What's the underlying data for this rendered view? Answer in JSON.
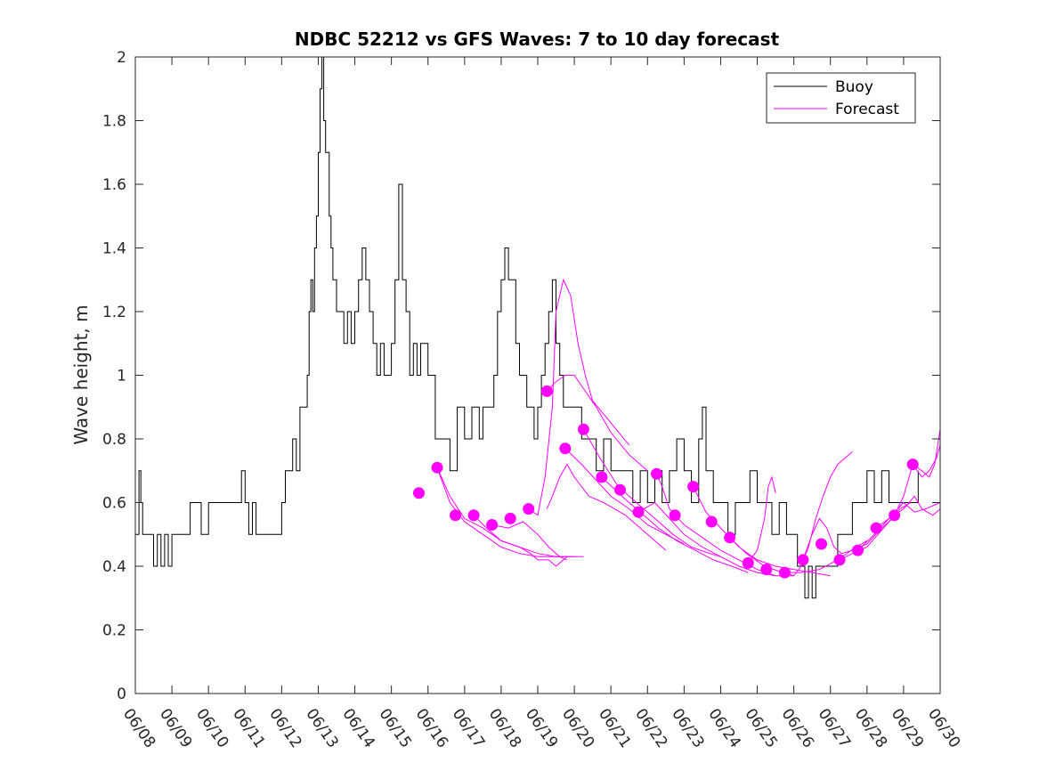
{
  "chart_data": {
    "type": "line",
    "title": "NDBC 52212 vs GFS Waves: 7 to 10 day forecast",
    "ylabel": "Wave height, m",
    "xlabel": "",
    "xlim": [
      0,
      22
    ],
    "ylim": [
      0,
      2
    ],
    "x_ticks": [
      {
        "x": 0,
        "label": "06/08"
      },
      {
        "x": 1,
        "label": "06/09"
      },
      {
        "x": 2,
        "label": "06/10"
      },
      {
        "x": 3,
        "label": "06/11"
      },
      {
        "x": 4,
        "label": "06/12"
      },
      {
        "x": 5,
        "label": "06/13"
      },
      {
        "x": 6,
        "label": "06/14"
      },
      {
        "x": 7,
        "label": "06/15"
      },
      {
        "x": 8,
        "label": "06/16"
      },
      {
        "x": 9,
        "label": "06/17"
      },
      {
        "x": 10,
        "label": "06/18"
      },
      {
        "x": 11,
        "label": "06/19"
      },
      {
        "x": 12,
        "label": "06/20"
      },
      {
        "x": 13,
        "label": "06/21"
      },
      {
        "x": 14,
        "label": "06/22"
      },
      {
        "x": 15,
        "label": "06/23"
      },
      {
        "x": 16,
        "label": "06/24"
      },
      {
        "x": 17,
        "label": "06/25"
      },
      {
        "x": 18,
        "label": "06/26"
      },
      {
        "x": 19,
        "label": "06/27"
      },
      {
        "x": 20,
        "label": "06/28"
      },
      {
        "x": 21,
        "label": "06/29"
      },
      {
        "x": 22,
        "label": "06/30"
      }
    ],
    "y_ticks": [
      {
        "y": 0,
        "label": "0"
      },
      {
        "y": 0.2,
        "label": "0.2"
      },
      {
        "y": 0.4,
        "label": "0.4"
      },
      {
        "y": 0.6,
        "label": "0.6"
      },
      {
        "y": 0.8,
        "label": "0.8"
      },
      {
        "y": 1,
        "label": "1"
      },
      {
        "y": 1.2,
        "label": "1.2"
      },
      {
        "y": 1.4,
        "label": "1.4"
      },
      {
        "y": 1.6,
        "label": "1.6"
      },
      {
        "y": 1.8,
        "label": "1.8"
      },
      {
        "y": 2,
        "label": "2"
      }
    ],
    "legend": {
      "position": "top-right",
      "entries": [
        {
          "label": "Buoy",
          "color": "#000000"
        },
        {
          "label": "Forecast",
          "color": "#ff00ff"
        }
      ]
    },
    "colors": {
      "buoy": "#000000",
      "forecast": "#ff00ff"
    },
    "buoy": {
      "name": "Buoy",
      "x": [
        0,
        0.1,
        0.15,
        0.2,
        0.3,
        0.5,
        0.6,
        0.7,
        0.8,
        0.9,
        1.0,
        1.2,
        1.5,
        1.8,
        2.0,
        2.3,
        2.6,
        2.9,
        3.0,
        3.1,
        3.2,
        3.3,
        3.5,
        3.8,
        4.0,
        4.1,
        4.2,
        4.3,
        4.4,
        4.5,
        4.6,
        4.7,
        4.75,
        4.8,
        4.85,
        4.9,
        4.95,
        5.0,
        5.05,
        5.1,
        5.15,
        5.2,
        5.3,
        5.35,
        5.4,
        5.5,
        5.6,
        5.7,
        5.8,
        5.9,
        6.0,
        6.1,
        6.2,
        6.3,
        6.4,
        6.5,
        6.6,
        6.7,
        6.8,
        6.9,
        7.0,
        7.1,
        7.2,
        7.3,
        7.4,
        7.5,
        7.6,
        7.7,
        7.8,
        8.0,
        8.2,
        8.3,
        8.4,
        8.6,
        8.8,
        9.0,
        9.1,
        9.2,
        9.3,
        9.4,
        9.5,
        9.6,
        9.7,
        9.8,
        9.9,
        10.0,
        10.1,
        10.2,
        10.3,
        10.4,
        10.5,
        10.6,
        10.7,
        10.8,
        10.9,
        11.0,
        11.1,
        11.2,
        11.3,
        11.4,
        11.5,
        11.6,
        11.7,
        11.8,
        12.0,
        12.2,
        12.4,
        12.6,
        12.8,
        13.0,
        13.2,
        13.4,
        13.6,
        13.8,
        14.0,
        14.2,
        14.4,
        14.6,
        14.8,
        15.0,
        15.2,
        15.4,
        15.5,
        15.6,
        15.8,
        16.0,
        16.2,
        16.4,
        16.6,
        16.8,
        17.0,
        17.2,
        17.4,
        17.6,
        17.8,
        18.0,
        18.1,
        18.2,
        18.3,
        18.4,
        18.5,
        18.6,
        18.8,
        19.0,
        19.2,
        19.4,
        19.6,
        19.8,
        20.0,
        20.2,
        20.4,
        20.6,
        20.8,
        21.0,
        21.2,
        21.4
      ],
      "y": [
        0.5,
        0.7,
        0.6,
        0.5,
        0.5,
        0.4,
        0.5,
        0.4,
        0.5,
        0.4,
        0.5,
        0.5,
        0.6,
        0.5,
        0.6,
        0.6,
        0.6,
        0.7,
        0.6,
        0.5,
        0.6,
        0.5,
        0.5,
        0.5,
        0.6,
        0.7,
        0.7,
        0.8,
        0.7,
        0.9,
        0.9,
        1.0,
        1.2,
        1.3,
        1.2,
        1.4,
        1.5,
        1.7,
        1.9,
        2.0,
        1.8,
        1.7,
        1.5,
        1.4,
        1.3,
        1.2,
        1.2,
        1.1,
        1.2,
        1.1,
        1.2,
        1.3,
        1.4,
        1.3,
        1.2,
        1.1,
        1.0,
        1.1,
        1.0,
        1.0,
        1.1,
        1.3,
        1.6,
        1.3,
        1.2,
        1.0,
        1.1,
        1.0,
        1.1,
        1.0,
        0.8,
        0.8,
        0.8,
        0.7,
        0.9,
        0.8,
        0.8,
        0.9,
        0.9,
        0.8,
        0.9,
        0.9,
        0.9,
        1.0,
        1.2,
        1.3,
        1.4,
        1.3,
        1.3,
        1.1,
        1.0,
        1.0,
        0.9,
        0.9,
        0.8,
        0.9,
        1.0,
        1.1,
        1.2,
        1.3,
        1.1,
        1.0,
        0.9,
        0.9,
        0.9,
        0.8,
        0.8,
        0.7,
        0.8,
        0.7,
        0.7,
        0.7,
        0.6,
        0.7,
        0.6,
        0.7,
        0.6,
        0.7,
        0.8,
        0.7,
        0.6,
        0.8,
        0.9,
        0.7,
        0.6,
        0.6,
        0.5,
        0.6,
        0.6,
        0.7,
        0.6,
        0.6,
        0.5,
        0.6,
        0.5,
        0.5,
        0.4,
        0.4,
        0.3,
        0.4,
        0.3,
        0.4,
        0.4,
        0.4,
        0.5,
        0.5,
        0.6,
        0.6,
        0.7,
        0.6,
        0.7,
        0.6,
        0.6,
        0.6,
        0.6,
        0.7
      ]
    },
    "forecast_points": {
      "name": "Forecast",
      "x": [
        7.75,
        8.25,
        8.75,
        9.25,
        9.75,
        10.25,
        10.75,
        11.25,
        11.75,
        12.25,
        12.75,
        13.25,
        13.75,
        14.25,
        14.75,
        15.25,
        15.75,
        16.25,
        16.75,
        17.25,
        17.75,
        18.25,
        18.75,
        19.25,
        19.75,
        20.25,
        20.75,
        21.25
      ],
      "y": [
        0.63,
        0.71,
        0.56,
        0.56,
        0.53,
        0.55,
        0.58,
        0.95,
        0.77,
        0.83,
        0.68,
        0.64,
        0.57,
        0.69,
        0.56,
        0.65,
        0.54,
        0.49,
        0.41,
        0.39,
        0.38,
        0.42,
        0.47,
        0.42,
        0.45,
        0.52,
        0.56,
        0.72
      ]
    },
    "forecast_lines": [
      {
        "x": [
          8.25,
          8.6,
          9.0,
          9.5,
          10.0,
          10.5,
          11.0,
          11.5,
          12.25
        ],
        "y": [
          0.71,
          0.62,
          0.55,
          0.52,
          0.48,
          0.46,
          0.44,
          0.43,
          0.43
        ]
      },
      {
        "x": [
          8.25,
          8.6,
          9.0,
          9.5,
          10.0,
          10.5,
          11.0,
          11.5,
          12.0
        ],
        "y": [
          0.71,
          0.6,
          0.54,
          0.5,
          0.46,
          0.44,
          0.43,
          0.43,
          0.43
        ]
      },
      {
        "x": [
          9.25,
          9.6,
          10.0,
          10.5,
          10.8,
          11.0,
          11.3,
          11.5,
          11.8
        ],
        "y": [
          0.56,
          0.52,
          0.48,
          0.46,
          0.44,
          0.42,
          0.42,
          0.4,
          0.43
        ]
      },
      {
        "x": [
          9.75,
          10.2,
          10.6,
          11.0,
          11.3,
          11.6,
          11.8
        ],
        "y": [
          0.53,
          0.52,
          0.54,
          0.5,
          0.46,
          0.43,
          0.42
        ]
      },
      {
        "x": [
          10.75,
          11.0,
          11.2,
          11.4,
          11.5,
          11.7,
          11.9,
          12.1,
          12.3,
          12.5,
          13.0,
          13.5
        ],
        "y": [
          0.58,
          0.56,
          0.68,
          0.9,
          1.2,
          1.3,
          1.25,
          1.1,
          1.0,
          0.92,
          0.85,
          0.78
        ]
      },
      {
        "x": [
          11.25,
          11.5,
          11.75,
          12.0,
          12.3,
          12.6,
          13.0,
          13.5,
          14.0
        ],
        "y": [
          0.95,
          0.98,
          1.0,
          1.0,
          0.95,
          0.9,
          0.82,
          0.75,
          0.7
        ]
      },
      {
        "x": [
          11.25,
          11.4,
          11.6,
          11.8,
          12.0,
          12.4,
          12.8,
          13.4,
          14.0,
          14.5
        ],
        "y": [
          0.58,
          0.62,
          0.68,
          0.72,
          0.68,
          0.62,
          0.6,
          0.56,
          0.5,
          0.45
        ]
      },
      {
        "x": [
          11.75,
          12.2,
          12.6,
          13.0,
          13.5,
          14.0,
          14.5,
          15.0
        ],
        "y": [
          0.77,
          0.72,
          0.67,
          0.62,
          0.58,
          0.53,
          0.5,
          0.47
        ]
      },
      {
        "x": [
          12.25,
          12.7,
          13.2,
          13.7,
          14.2,
          14.7,
          15.2,
          15.7,
          16.0
        ],
        "y": [
          0.83,
          0.74,
          0.65,
          0.6,
          0.55,
          0.5,
          0.46,
          0.44,
          0.43
        ]
      },
      {
        "x": [
          12.75,
          13.3,
          13.8,
          14.3,
          14.8,
          15.3,
          15.8,
          16.3,
          16.75
        ],
        "y": [
          0.68,
          0.62,
          0.57,
          0.52,
          0.48,
          0.45,
          0.42,
          0.4,
          0.38
        ]
      },
      {
        "x": [
          13.75,
          14.2,
          14.6,
          15.0,
          15.5,
          16.0,
          16.5,
          17.0,
          17.5
        ],
        "y": [
          0.57,
          0.6,
          0.55,
          0.5,
          0.46,
          0.43,
          0.4,
          0.38,
          0.37
        ]
      },
      {
        "x": [
          14.25,
          14.4,
          14.6,
          15.0,
          15.5,
          16.0,
          16.5,
          17.0,
          17.5,
          18.0
        ],
        "y": [
          0.69,
          0.65,
          0.58,
          0.53,
          0.49,
          0.45,
          0.42,
          0.39,
          0.37,
          0.37
        ]
      },
      {
        "x": [
          15.25,
          15.6,
          16.0,
          16.5,
          17.0,
          17.5,
          18.0,
          18.5,
          19.0
        ],
        "y": [
          0.65,
          0.57,
          0.52,
          0.46,
          0.42,
          0.4,
          0.39,
          0.38,
          0.37
        ]
      },
      {
        "x": [
          16.25,
          16.7,
          17.2,
          17.7,
          18.2,
          18.7,
          19.2,
          19.7,
          20.0
        ],
        "y": [
          0.49,
          0.44,
          0.4,
          0.38,
          0.38,
          0.39,
          0.42,
          0.46,
          0.48
        ]
      },
      {
        "x": [
          16.75,
          17.0,
          17.2,
          17.3,
          17.4,
          17.5
        ],
        "y": [
          0.41,
          0.45,
          0.55,
          0.65,
          0.68,
          0.63
        ]
      },
      {
        "x": [
          17.75,
          18.0,
          18.2,
          18.4,
          18.6,
          18.8,
          19.0,
          19.2,
          19.4,
          19.6
        ],
        "y": [
          0.38,
          0.37,
          0.4,
          0.46,
          0.55,
          0.62,
          0.68,
          0.72,
          0.74,
          0.76
        ]
      },
      {
        "x": [
          18.25,
          18.5,
          18.7,
          18.9,
          19.1,
          19.3,
          19.6,
          20.0,
          20.4,
          20.8
        ],
        "y": [
          0.42,
          0.5,
          0.55,
          0.52,
          0.46,
          0.44,
          0.45,
          0.47,
          0.52,
          0.56
        ]
      },
      {
        "x": [
          19.25,
          19.6,
          20.0,
          20.3,
          20.6,
          20.9,
          21.2
        ],
        "y": [
          0.42,
          0.44,
          0.46,
          0.5,
          0.54,
          0.58,
          0.6
        ]
      },
      {
        "x": [
          19.75,
          20.2,
          20.6,
          21.0,
          21.3,
          21.6,
          22.0
        ],
        "y": [
          0.45,
          0.5,
          0.55,
          0.6,
          0.57,
          0.58,
          0.6
        ]
      },
      {
        "x": [
          20.25,
          20.6,
          21.0,
          21.3,
          21.5,
          21.8,
          22.0
        ],
        "y": [
          0.52,
          0.55,
          0.58,
          0.62,
          0.58,
          0.56,
          0.58
        ]
      },
      {
        "x": [
          20.75,
          21.0,
          21.25,
          21.5,
          21.7,
          21.85,
          22.0
        ],
        "y": [
          0.56,
          0.62,
          0.72,
          0.7,
          0.68,
          0.72,
          0.83
        ]
      },
      {
        "x": [
          21.25,
          21.5,
          21.7,
          21.9,
          22.0
        ],
        "y": [
          0.72,
          0.68,
          0.7,
          0.74,
          0.78
        ]
      }
    ]
  }
}
